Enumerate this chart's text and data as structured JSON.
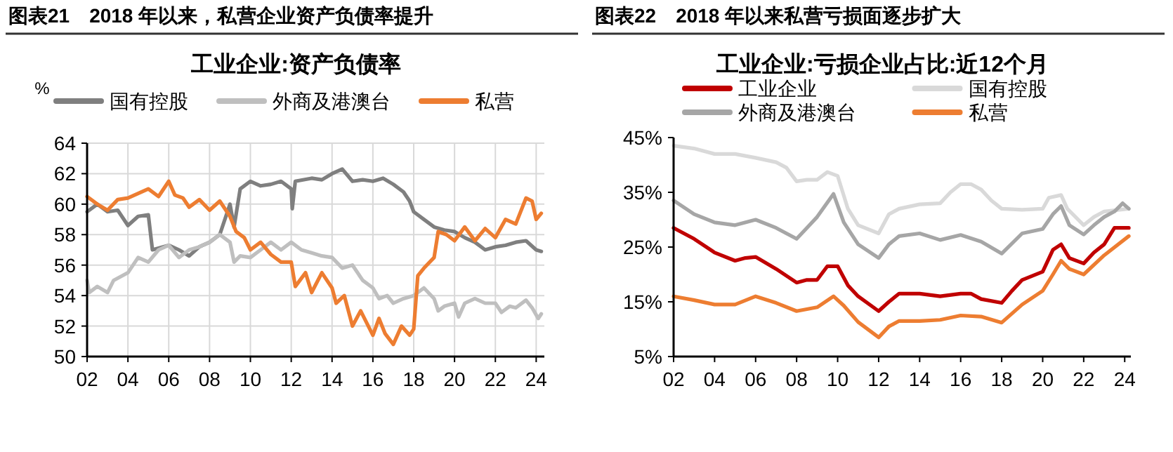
{
  "chart_data": [
    {
      "type": "line",
      "title": "图表21　2018 年以来，私营企业资产负债率提升",
      "subtitle": "工业企业:资产负债率",
      "ylabel": "%",
      "xlim": [
        2002,
        2024.4
      ],
      "ylim": [
        50,
        64
      ],
      "xticks": [
        {
          "value": 2002,
          "label": "02"
        },
        {
          "value": 2004,
          "label": "04"
        },
        {
          "value": 2006,
          "label": "06"
        },
        {
          "value": 2008,
          "label": "08"
        },
        {
          "value": 2010,
          "label": "10"
        },
        {
          "value": 2012,
          "label": "12"
        },
        {
          "value": 2014,
          "label": "14"
        },
        {
          "value": 2016,
          "label": "16"
        },
        {
          "value": 2018,
          "label": "18"
        },
        {
          "value": 2020,
          "label": "20"
        },
        {
          "value": 2022,
          "label": "22"
        },
        {
          "value": 2024,
          "label": "24"
        }
      ],
      "yticks": [
        50,
        52,
        54,
        56,
        58,
        60,
        62,
        64
      ],
      "grid": true,
      "legend": "top",
      "series": [
        {
          "name": "国有控股",
          "color": "#7f7f7f",
          "x": [
            2002,
            2002.5,
            2003,
            2003.5,
            2004,
            2004.5,
            2005,
            2005.2,
            2006,
            2006.5,
            2007,
            2007.5,
            2008,
            2008.5,
            2009,
            2009.2,
            2009.5,
            2010,
            2010.5,
            2011,
            2011.5,
            2012,
            2012.05,
            2012.2,
            2013,
            2013.5,
            2014,
            2014.5,
            2015,
            2015.5,
            2016,
            2016.5,
            2017,
            2017.5,
            2017.8,
            2018,
            2018.5,
            2019,
            2019.5,
            2020,
            2020.5,
            2021,
            2021.5,
            2022,
            2022.5,
            2023,
            2023.5,
            2024,
            2024.25
          ],
          "values": [
            59.5,
            60,
            59.5,
            59.6,
            58.6,
            59.2,
            59.3,
            57,
            57.3,
            57,
            56.6,
            57.2,
            57.5,
            58,
            60,
            58.5,
            61,
            61.5,
            61.2,
            61.3,
            61.5,
            61,
            59.7,
            61.5,
            61.7,
            61.6,
            62,
            62.3,
            61.5,
            61.6,
            61.5,
            61.7,
            61.3,
            60.8,
            60.2,
            59.5,
            59,
            58.5,
            58.3,
            58.2,
            57.8,
            57.5,
            57,
            57.2,
            57.3,
            57.5,
            57.6,
            57,
            56.9
          ]
        },
        {
          "name": "外商及港澳台",
          "color": "#bfbfbf",
          "x": [
            2002,
            2002.1,
            2002.5,
            2003,
            2003.3,
            2004,
            2004.5,
            2005,
            2005.5,
            2006,
            2006.5,
            2007,
            2007.5,
            2008,
            2008.5,
            2009,
            2009.2,
            2009.5,
            2010,
            2010.5,
            2011,
            2011.5,
            2012,
            2012.5,
            2013,
            2013.5,
            2014,
            2014.5,
            2015,
            2015.5,
            2016,
            2016.3,
            2016.7,
            2017,
            2017.5,
            2018,
            2018.5,
            2019,
            2019.2,
            2019.5,
            2020,
            2020.2,
            2020.5,
            2021,
            2021.5,
            2022,
            2022.3,
            2022.7,
            2023,
            2023.5,
            2023.8,
            2024.1,
            2024.25
          ],
          "values": [
            55,
            54.2,
            54.6,
            54.2,
            55,
            55.5,
            56.5,
            56.2,
            57,
            57.3,
            56.5,
            57,
            57.2,
            57.5,
            58,
            57.5,
            56.2,
            56.6,
            56.5,
            57,
            57.5,
            57,
            57.5,
            57,
            56.8,
            56.6,
            56.5,
            55.8,
            56,
            55,
            54.5,
            53.8,
            54,
            53.5,
            53.8,
            54,
            54.5,
            53.8,
            53,
            53.3,
            53.5,
            52.6,
            53.5,
            53.8,
            53.5,
            53.5,
            52.9,
            53.3,
            53.2,
            53.7,
            53.2,
            52.5,
            52.8
          ]
        },
        {
          "name": "私营",
          "color": "#ed7d31",
          "x": [
            2002,
            2002.5,
            2003,
            2003.5,
            2004,
            2004.5,
            2005,
            2005.5,
            2006,
            2006.3,
            2006.7,
            2007,
            2007.5,
            2008,
            2008.5,
            2009,
            2009.3,
            2009.7,
            2010,
            2010.5,
            2011,
            2011.5,
            2012,
            2012.2,
            2012.7,
            2013,
            2013.5,
            2014,
            2014.2,
            2014.6,
            2015,
            2015.4,
            2016,
            2016.3,
            2016.6,
            2017,
            2017.4,
            2017.8,
            2018,
            2018.2,
            2018.5,
            2019,
            2019.2,
            2019.6,
            2020,
            2020.5,
            2021,
            2021.5,
            2022,
            2022.5,
            2023,
            2023.5,
            2023.8,
            2024,
            2024.25
          ],
          "values": [
            60.5,
            60,
            59.6,
            60.3,
            60.4,
            60.7,
            61,
            60.5,
            61.5,
            60.6,
            60.4,
            59.8,
            60.3,
            59.6,
            60.2,
            59.2,
            58.2,
            57.8,
            57,
            57.5,
            56.7,
            56.2,
            56.2,
            54.6,
            55.5,
            54.2,
            55.5,
            54.5,
            53.5,
            54,
            52,
            53,
            51.4,
            52.5,
            51.5,
            50.8,
            52,
            51.4,
            51.8,
            55.3,
            55.8,
            56.5,
            58.2,
            58,
            57.6,
            58.5,
            57.6,
            58.4,
            57.8,
            59,
            58.7,
            60.4,
            60.2,
            59,
            59.4
          ]
        }
      ]
    },
    {
      "type": "line",
      "title": "图表22　2018 年以来私营亏损面逐步扩大",
      "subtitle": "工业企业:亏损企业占比:近12个月",
      "xlim": [
        2002,
        2024.3
      ],
      "ylim": [
        5,
        45
      ],
      "xticks": [
        {
          "value": 2002,
          "label": "02"
        },
        {
          "value": 2004,
          "label": "04"
        },
        {
          "value": 2006,
          "label": "06"
        },
        {
          "value": 2008,
          "label": "08"
        },
        {
          "value": 2010,
          "label": "10"
        },
        {
          "value": 2012,
          "label": "12"
        },
        {
          "value": 2014,
          "label": "14"
        },
        {
          "value": 2016,
          "label": "16"
        },
        {
          "value": 2018,
          "label": "18"
        },
        {
          "value": 2020,
          "label": "20"
        },
        {
          "value": 2022,
          "label": "22"
        },
        {
          "value": 2024,
          "label": "24"
        }
      ],
      "yticks": [
        {
          "value": 5,
          "label": "5%"
        },
        {
          "value": 15,
          "label": "15%"
        },
        {
          "value": 25,
          "label": "25%"
        },
        {
          "value": 35,
          "label": "35%"
        },
        {
          "value": 45,
          "label": "45%"
        }
      ],
      "legend": "top",
      "series": [
        {
          "name": "工业企业",
          "color": "#c00000",
          "x": [
            2002,
            2003,
            2004,
            2005,
            2005.5,
            2006,
            2007,
            2008,
            2008.5,
            2009,
            2009.5,
            2010,
            2010.5,
            2011,
            2012,
            2012.5,
            2013,
            2014,
            2015,
            2016,
            2016.5,
            2017,
            2018,
            2018.5,
            2019,
            2020,
            2020.5,
            2020.9,
            2021.3,
            2022,
            2022.5,
            2023,
            2023.5,
            2024.2
          ],
          "values": [
            28.5,
            26.5,
            24,
            22.5,
            23,
            23.2,
            21,
            18.5,
            19,
            19,
            21.5,
            21.5,
            18,
            16,
            13.3,
            15,
            16.5,
            16.5,
            16,
            16.5,
            16.5,
            15.5,
            14.8,
            17,
            19,
            20.5,
            24.5,
            25.5,
            23,
            22,
            24,
            25.5,
            28.5,
            28.5
          ]
        },
        {
          "name": "国有控股",
          "color": "#d9d9d9",
          "x": [
            2002,
            2003,
            2004,
            2005,
            2006,
            2007,
            2007.5,
            2008,
            2008.5,
            2009,
            2009.5,
            2010,
            2010.5,
            2011,
            2012,
            2012.5,
            2013,
            2014,
            2015,
            2015.5,
            2016,
            2016.5,
            2017,
            2017.5,
            2018,
            2019,
            2020,
            2020.3,
            2020.9,
            2021.2,
            2022,
            2022.5,
            2023,
            2024.2
          ],
          "values": [
            43.5,
            43,
            42,
            42,
            41.3,
            40.5,
            39.5,
            37,
            37.3,
            37.3,
            38.7,
            38,
            32,
            29,
            27.5,
            31,
            32,
            32.8,
            33,
            35,
            36.5,
            36.5,
            35.5,
            33.5,
            32,
            31.8,
            32,
            34,
            34.5,
            32,
            29,
            30.5,
            31.5,
            32
          ]
        },
        {
          "name": "外商及港澳台",
          "color": "#a6a6a6",
          "x": [
            2002,
            2003,
            2004,
            2005,
            2006,
            2007,
            2008,
            2008.5,
            2009,
            2009.8,
            2010.3,
            2011,
            2012,
            2012.5,
            2013,
            2014,
            2015,
            2016,
            2017,
            2018,
            2019,
            2020,
            2020.5,
            2020.9,
            2021.3,
            2022,
            2022.5,
            2023,
            2023.5,
            2023.9,
            2024.2
          ],
          "values": [
            33.5,
            31,
            29.5,
            29,
            30,
            28.5,
            26.5,
            28.5,
            30.5,
            34.7,
            29.5,
            25.5,
            23,
            25.5,
            27,
            27.5,
            26.3,
            27.2,
            26,
            23.8,
            27.5,
            28.3,
            31,
            32.5,
            29,
            27.3,
            29,
            30.5,
            31.5,
            33,
            32
          ]
        },
        {
          "name": "私营",
          "color": "#ed7d31",
          "x": [
            2002,
            2003,
            2004,
            2005,
            2006,
            2007,
            2008,
            2009,
            2009.8,
            2010.3,
            2011,
            2012,
            2012.5,
            2013,
            2014,
            2015,
            2016,
            2017,
            2018,
            2019,
            2020,
            2020.5,
            2020.9,
            2021.3,
            2022,
            2023,
            2024.2
          ],
          "values": [
            16,
            15.3,
            14.5,
            14.5,
            16,
            14.8,
            13.3,
            14,
            16,
            14.3,
            11.3,
            8.5,
            10.5,
            11.5,
            11.5,
            11.7,
            12.5,
            12.3,
            11.2,
            14.5,
            17,
            20,
            22.5,
            21,
            20,
            23.5,
            27
          ]
        }
      ]
    }
  ]
}
